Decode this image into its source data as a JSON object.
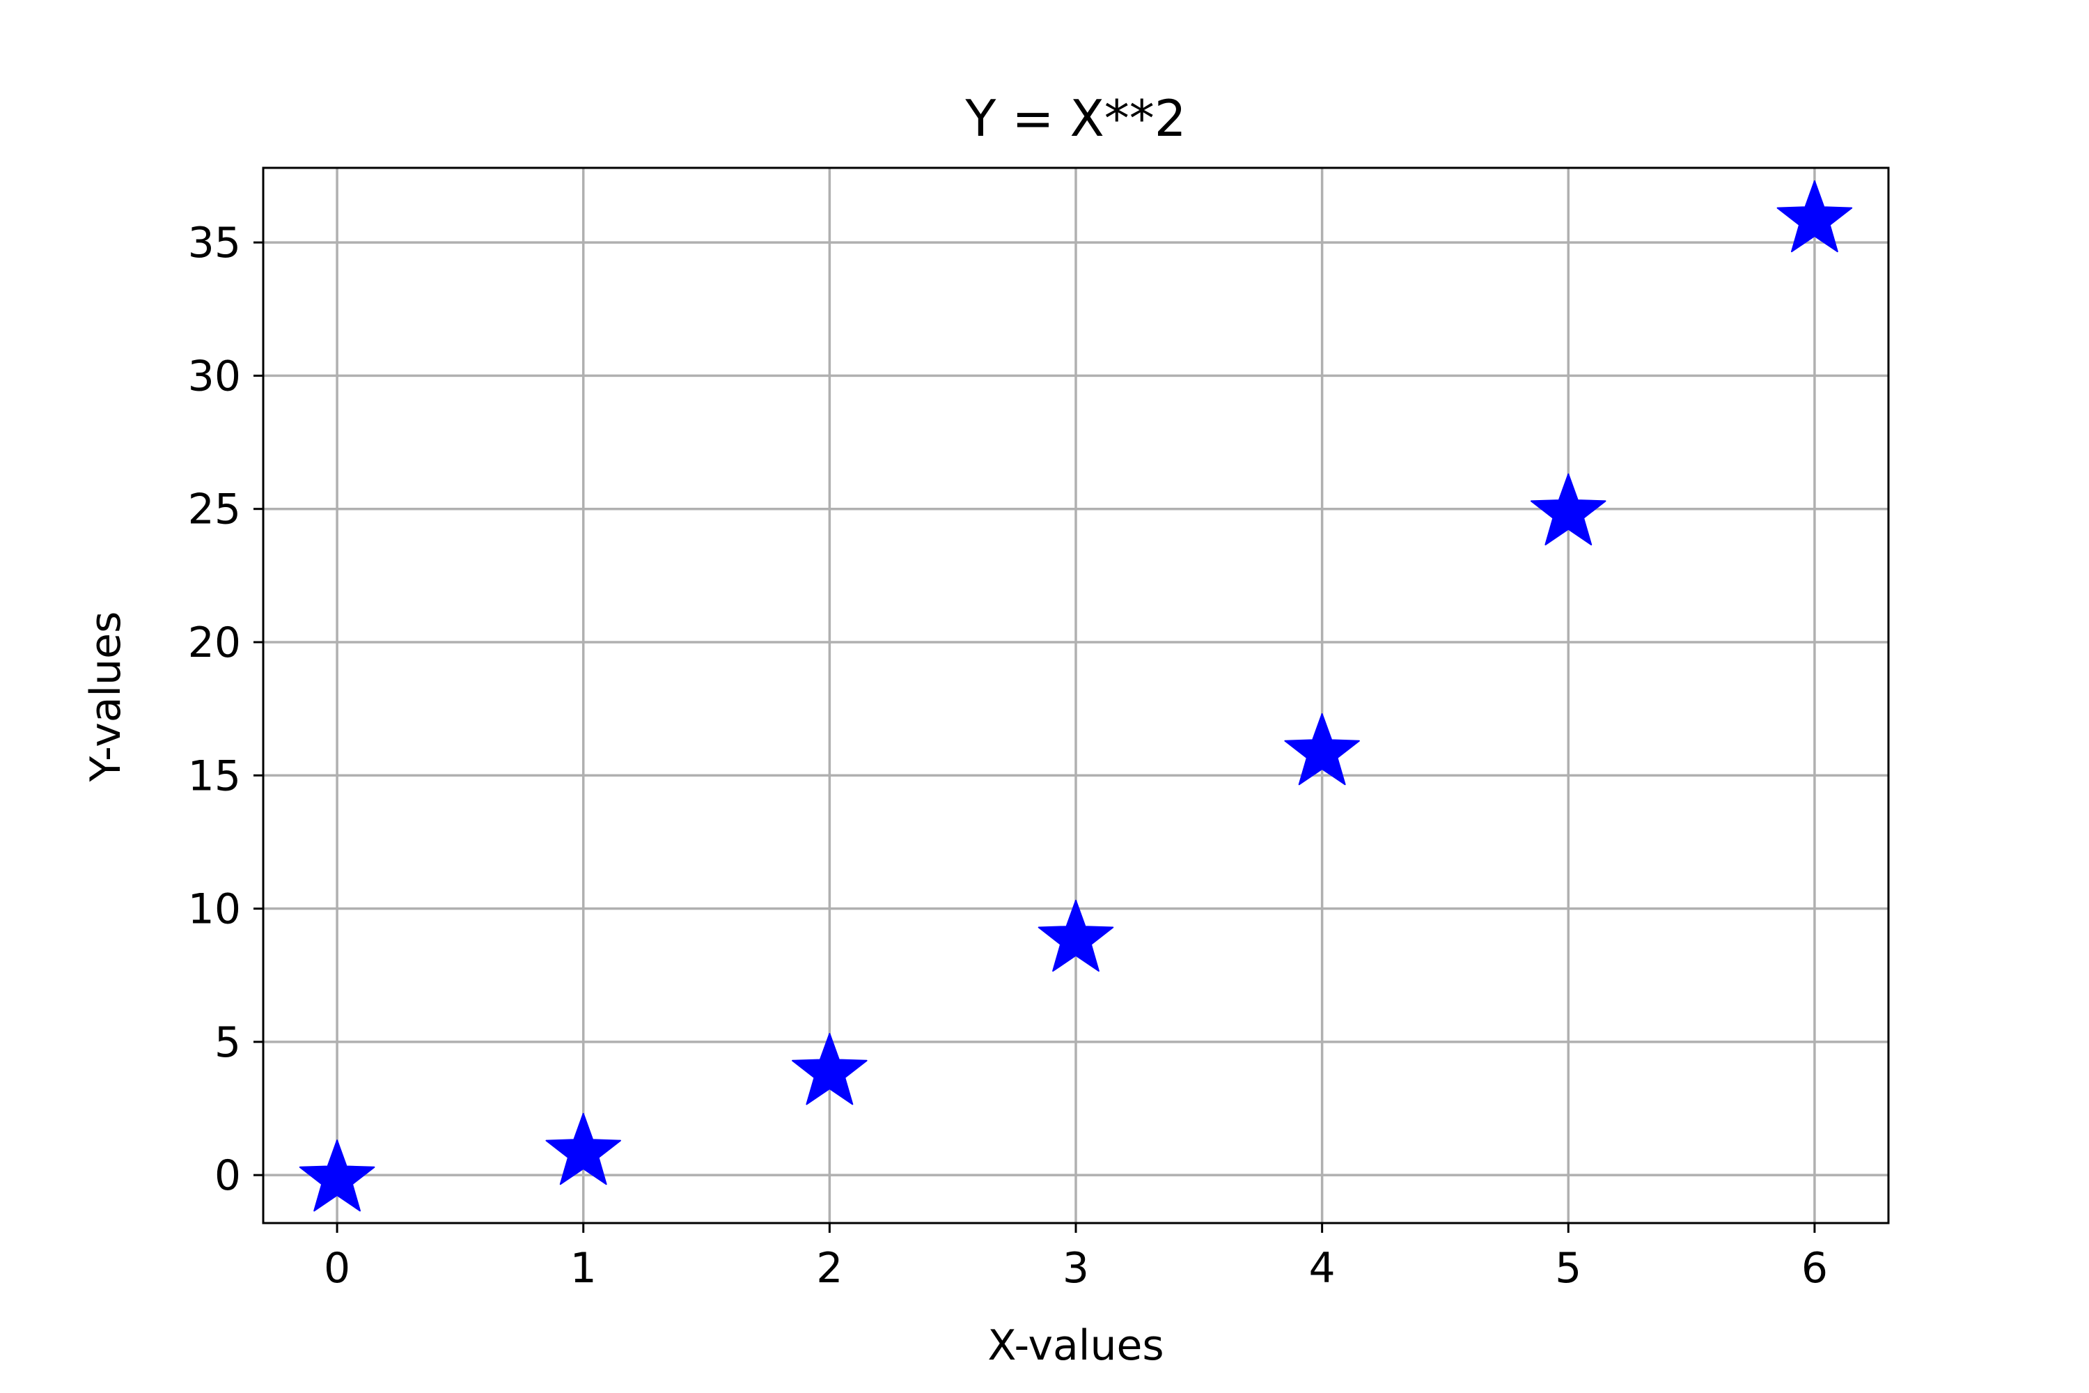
{
  "chart_data": {
    "type": "scatter",
    "title": "Y = X**2",
    "xlabel": "X-values",
    "ylabel": "Y-values",
    "x": [
      0,
      1,
      2,
      3,
      4,
      5,
      6
    ],
    "y": [
      0,
      1,
      4,
      9,
      16,
      25,
      36
    ],
    "marker": "star-icon",
    "xlim": [
      -0.3,
      6.3
    ],
    "ylim": [
      -1.8,
      37.8
    ],
    "xticks": [
      0,
      1,
      2,
      3,
      4,
      5,
      6
    ],
    "yticks": [
      0,
      5,
      10,
      15,
      20,
      25,
      30,
      35
    ],
    "grid": true,
    "colors": {
      "marker": "#0000ff",
      "grid": "#b0b0b0",
      "axes": "#000000"
    }
  }
}
